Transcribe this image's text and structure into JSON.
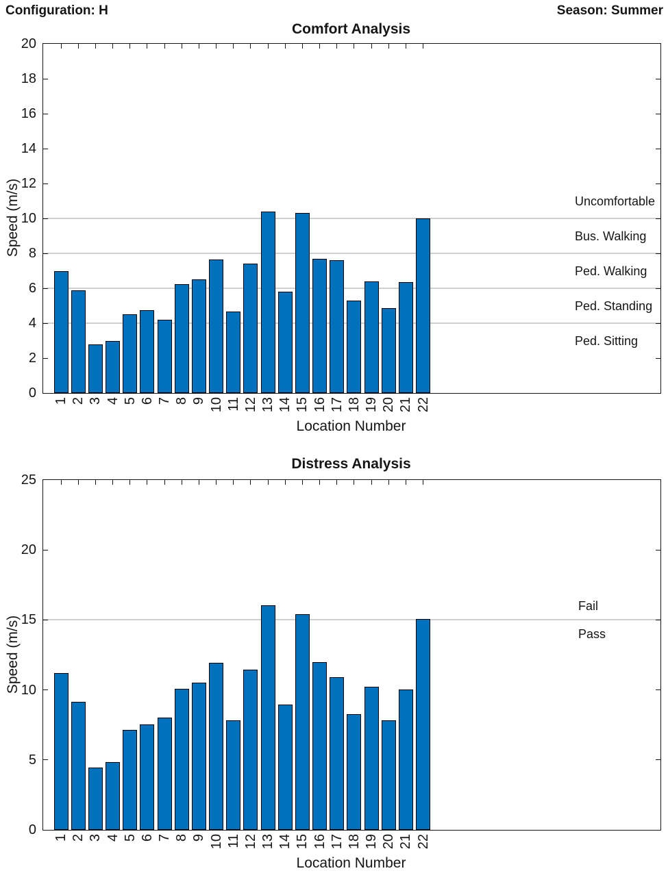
{
  "header": {
    "left": "Configuration: H",
    "right": "Season: Summer"
  },
  "chart_data": [
    {
      "type": "bar",
      "title": "Comfort Analysis",
      "xlabel": "Location Number",
      "ylabel": "Speed (m/s)",
      "ylim": [
        0,
        20
      ],
      "yticks": [
        0,
        2,
        4,
        6,
        8,
        10,
        12,
        14,
        16,
        18,
        20
      ],
      "grid": "threshold-lines-only",
      "legend": "none",
      "categories": [
        "1",
        "2",
        "3",
        "4",
        "5",
        "6",
        "7",
        "8",
        "9",
        "10",
        "11",
        "12",
        "13",
        "14",
        "15",
        "16",
        "17",
        "18",
        "19",
        "20",
        "21",
        "22"
      ],
      "values": [
        7.0,
        5.9,
        2.8,
        3.0,
        4.5,
        4.75,
        4.2,
        6.25,
        6.5,
        7.65,
        4.65,
        7.4,
        10.4,
        5.8,
        10.3,
        7.7,
        7.6,
        5.3,
        6.4,
        4.85,
        6.35,
        10.0
      ],
      "bar_color": "#0072BD",
      "bar_edge_color": "#000000",
      "threshold_color": "#cfcfcf",
      "threshold_lines": [
        4,
        6,
        8,
        10
      ],
      "annotations": [
        {
          "text": "Uncomfortable",
          "y": 11
        },
        {
          "text": "Bus. Walking",
          "y": 9
        },
        {
          "text": "Ped. Walking",
          "y": 7
        },
        {
          "text": "Ped. Standing",
          "y": 5
        },
        {
          "text": "Ped. Sitting",
          "y": 3
        }
      ]
    },
    {
      "type": "bar",
      "title": "Distress Analysis",
      "xlabel": "Location Number",
      "ylabel": "Speed (m/s)",
      "ylim": [
        0,
        25
      ],
      "yticks": [
        0,
        5,
        10,
        15,
        20,
        25
      ],
      "grid": "threshold-lines-only",
      "legend": "none",
      "categories": [
        "1",
        "2",
        "3",
        "4",
        "5",
        "6",
        "7",
        "8",
        "9",
        "10",
        "11",
        "12",
        "13",
        "14",
        "15",
        "16",
        "17",
        "18",
        "19",
        "20",
        "21",
        "22"
      ],
      "values": [
        11.2,
        9.15,
        4.45,
        4.85,
        7.15,
        7.55,
        8.0,
        10.1,
        10.5,
        11.95,
        7.85,
        11.45,
        16.05,
        8.95,
        15.4,
        12.0,
        10.9,
        8.25,
        10.25,
        7.85,
        10.05,
        15.05
      ],
      "bar_color": "#0072BD",
      "bar_edge_color": "#000000",
      "threshold_color": "#cfcfcf",
      "threshold_lines": [
        15
      ],
      "annotations": [
        {
          "text": "Fail",
          "y": 16
        },
        {
          "text": "Pass",
          "y": 14
        }
      ]
    }
  ]
}
